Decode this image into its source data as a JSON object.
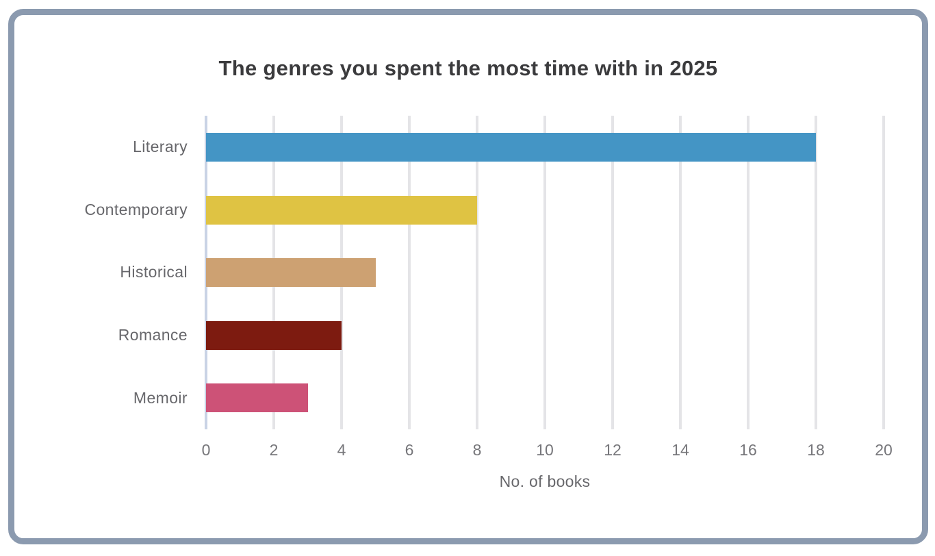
{
  "chart_data": {
    "type": "bar",
    "orientation": "horizontal",
    "title": "The genres you spent the most time with in 2025",
    "categories": [
      "Literary",
      "Contemporary",
      "Historical",
      "Romance",
      "Memoir"
    ],
    "values": [
      18,
      8,
      5,
      4,
      3
    ],
    "bar_colors": [
      "#4495c5",
      "#dfc343",
      "#cda172",
      "#7d1b10",
      "#cd5277"
    ],
    "xlabel": "No. of books",
    "ylabel": "",
    "xlim": [
      0,
      20
    ],
    "xticks": [
      0,
      2,
      4,
      6,
      8,
      10,
      12,
      14,
      16,
      18,
      20
    ],
    "grid": "vertical-only",
    "legend": "none"
  },
  "style": {
    "frame_border_color": "#8b9aaf",
    "background_color": "#ffffff",
    "title_color": "#3b3b3d",
    "category_label_color": "#67676b",
    "tick_label_color": "#76767a",
    "gridline_color": "#e4e4e7",
    "zero_gridline_color": "#c9d3e5"
  }
}
